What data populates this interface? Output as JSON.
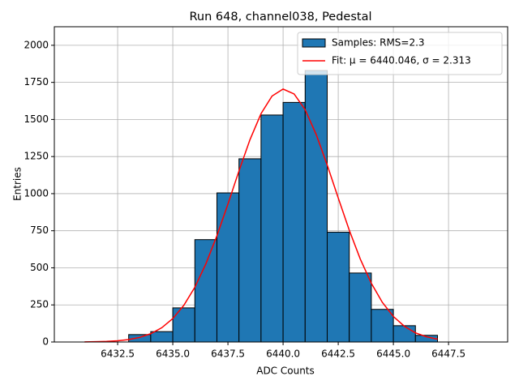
{
  "chart_data": {
    "type": "histogram",
    "title": "Run 648, channel038, Pedestal",
    "x_label": "ADC Counts",
    "y_label": "Entries",
    "xlim": [
      6429.63,
      6450.18
    ],
    "ylim": [
      0,
      2125
    ],
    "xticks": [
      6432.5,
      {
        "value": 6435,
        "label": "6435.0"
      },
      6437.5,
      {
        "value": 6440,
        "label": "6440.0"
      },
      6442.5,
      {
        "value": 6445,
        "label": "6445.0"
      },
      6447.5
    ],
    "yticks": [
      0,
      250,
      500,
      750,
      1000,
      1250,
      1500,
      1750,
      2000
    ],
    "grid": true,
    "legend": "upper right",
    "series": [
      {
        "name": "Samples: RMS=2.3",
        "type": "histogram",
        "color": "#1f77b4",
        "edgecolor": "#000000",
        "bins": [
          6433,
          6434,
          6435,
          6436,
          6437,
          6438,
          6439,
          6440,
          6441,
          6442,
          6443,
          6444,
          6445,
          6446,
          6447
        ],
        "values": [
          50,
          70,
          230,
          690,
          1005,
          1235,
          1530,
          1615,
          1830,
          740,
          465,
          220,
          110,
          45
        ]
      },
      {
        "name": "Fit: μ = 6440.046, σ = 2.313",
        "type": "line",
        "color": "#ff0000",
        "x": [
          6431,
          6431.5,
          6432,
          6432.5,
          6433,
          6433.5,
          6434,
          6434.5,
          6435,
          6435.5,
          6436,
          6436.5,
          6437,
          6437.5,
          6438,
          6438.5,
          6439,
          6439.5,
          6440,
          6440.5,
          6441,
          6441.5,
          6442,
          6442.5,
          6443,
          6443.5,
          6444,
          6444.5,
          6445,
          6445.5,
          6446,
          6446.5,
          6447
        ],
        "values": [
          0.8,
          1.9,
          4,
          8.3,
          16.5,
          31,
          56,
          96,
          158,
          247,
          369,
          527,
          716,
          930,
          1153,
          1364,
          1539,
          1658,
          1705,
          1672,
          1566,
          1399,
          1193,
          971,
          754,
          559,
          396,
          267,
          172,
          106,
          62,
          35,
          19
        ]
      }
    ]
  }
}
